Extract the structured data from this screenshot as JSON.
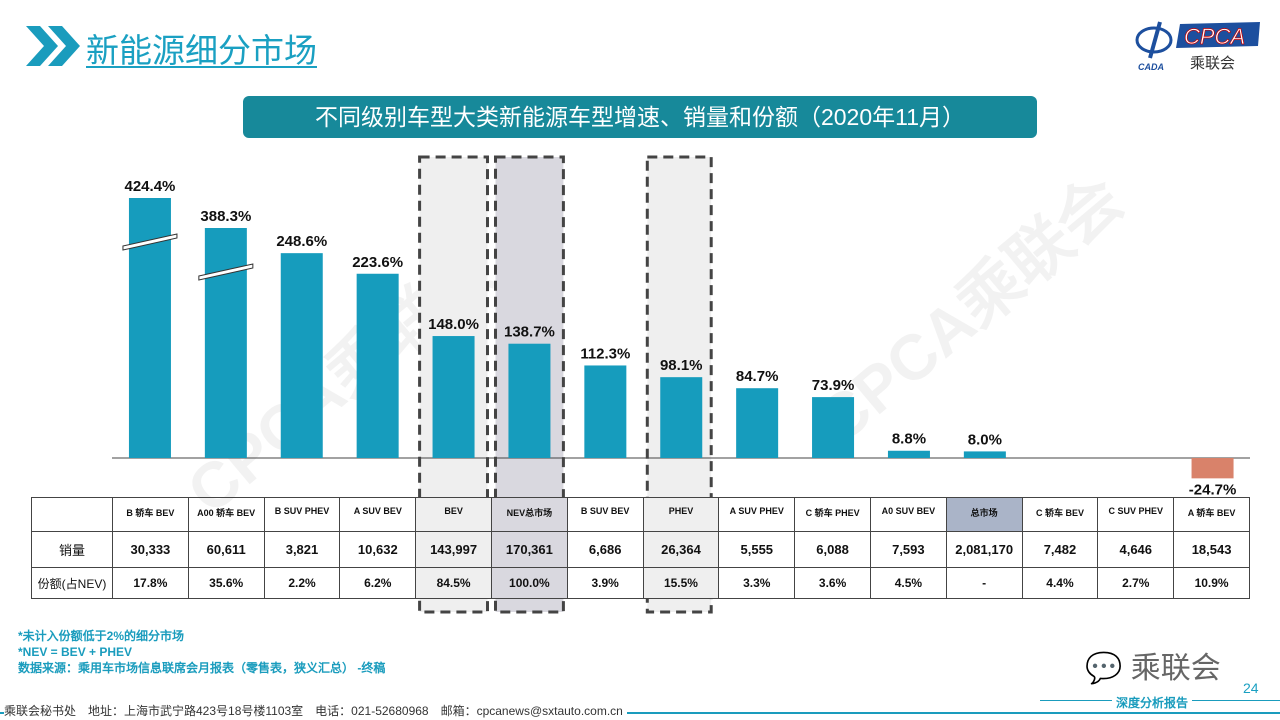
{
  "header": {
    "title": "新能源细分市场",
    "icon": "double-chevron-icon"
  },
  "logo": {
    "text": "CPCA",
    "subtext": "乘联会",
    "small": "CADA"
  },
  "chart_data": {
    "type": "bar",
    "title": "不同级别车型大类新能源车型增速、销量和份额（2020年11月）",
    "categories": [
      "B 轿车 BEV",
      "A00 轿车 BEV",
      "B SUV PHEV",
      "A SUV BEV",
      "BEV",
      "NEV总市场",
      "B SUV BEV",
      "PHEV",
      "A SUV PHEV",
      "C 轿车 PHEV",
      "A0 SUV BEV",
      "总市场",
      "C 轿车 BEV",
      "C SUV PHEV",
      "A 轿车 BEV"
    ],
    "values": [
      424.4,
      388.3,
      248.6,
      223.6,
      148.0,
      138.7,
      112.3,
      98.1,
      84.7,
      73.9,
      8.8,
      8.0,
      null,
      null,
      -24.7
    ],
    "labels": [
      "424.4%",
      "388.3%",
      "248.6%",
      "223.6%",
      "148.0%",
      "138.7%",
      "112.3%",
      "98.1%",
      "84.7%",
      "73.9%",
      "8.8%",
      "8.0%",
      "",
      "",
      "-24.7%"
    ],
    "broken_axis_bars": [
      0,
      1
    ],
    "highlighted": [
      4,
      5,
      7
    ],
    "colors": {
      "positive": "#169cbd",
      "negative": "#d9826a",
      "highlight": "#efefef",
      "nev_highlight": "#d9d8df",
      "total_header": "#aab4c8"
    }
  },
  "table": {
    "row_labels": [
      "销量",
      "份额(占NEV)"
    ],
    "sales": [
      "30,333",
      "60,611",
      "3,821",
      "10,632",
      "143,997",
      "170,361",
      "6,686",
      "26,364",
      "5,555",
      "6,088",
      "7,593",
      "2,081,170",
      "7,482",
      "4,646",
      "18,543"
    ],
    "share": [
      "17.8%",
      "35.6%",
      "2.2%",
      "6.2%",
      "84.5%",
      "100.0%",
      "3.9%",
      "15.5%",
      "3.3%",
      "3.6%",
      "4.5%",
      "-",
      "4.4%",
      "2.7%",
      "10.9%"
    ]
  },
  "notes": [
    "*未计入份额低于2%的细分市场",
    "*NEV = BEV + PHEV",
    "数据来源：乘用车市场信息联席会月报表（零售表，狭义汇总）  -终稿"
  ],
  "watermark": "CPCA乘联会",
  "footer": "乘联会秘书处　地址：上海市武宁路423号18号楼1103室　电话：021-52680968　邮箱：cpcanews@sxtauto.com.cn",
  "wechat": "乘联会",
  "report": "深度分析报告",
  "page": "24"
}
